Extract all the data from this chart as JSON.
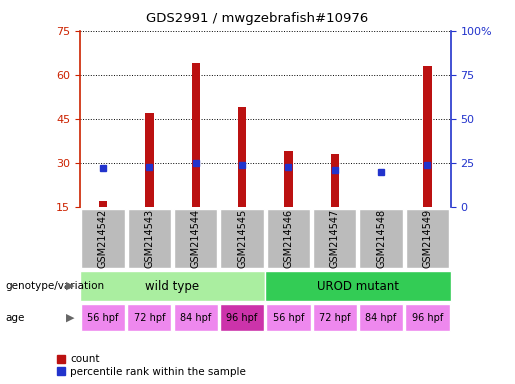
{
  "title": "GDS2991 / mwgzebrafish#10976",
  "samples": [
    "GSM214542",
    "GSM214543",
    "GSM214544",
    "GSM214545",
    "GSM214546",
    "GSM214547",
    "GSM214548",
    "GSM214549"
  ],
  "counts": [
    17,
    47,
    64,
    49,
    34,
    33,
    15,
    63
  ],
  "percentile_ranks": [
    22,
    23,
    25,
    24,
    23,
    21,
    20,
    24
  ],
  "ylim_left": [
    15,
    75
  ],
  "ylim_right": [
    0,
    100
  ],
  "yticks_left": [
    15,
    30,
    45,
    60,
    75
  ],
  "yticks_right": [
    0,
    25,
    50,
    75,
    100
  ],
  "bar_color": "#bb1111",
  "dot_color": "#2233cc",
  "bar_width": 0.18,
  "genotype_groups": [
    {
      "label": "wild type",
      "span": [
        0,
        4
      ],
      "color": "#aaeea0"
    },
    {
      "label": "UROD mutant",
      "span": [
        4,
        8
      ],
      "color": "#33cc55"
    }
  ],
  "age_labels": [
    "56 hpf",
    "72 hpf",
    "84 hpf",
    "96 hpf",
    "56 hpf",
    "72 hpf",
    "84 hpf",
    "96 hpf"
  ],
  "age_colors": [
    "#ee88ee",
    "#ee88ee",
    "#ee88ee",
    "#cc33aa",
    "#ee88ee",
    "#ee88ee",
    "#ee88ee",
    "#ee88ee"
  ],
  "label_genotype": "genotype/variation",
  "label_age": "age",
  "legend_count": "count",
  "legend_percentile": "percentile rank within the sample",
  "left_axis_color": "#cc2200",
  "right_axis_color": "#2233cc",
  "ticklabel_bg": "#bbbbbb"
}
